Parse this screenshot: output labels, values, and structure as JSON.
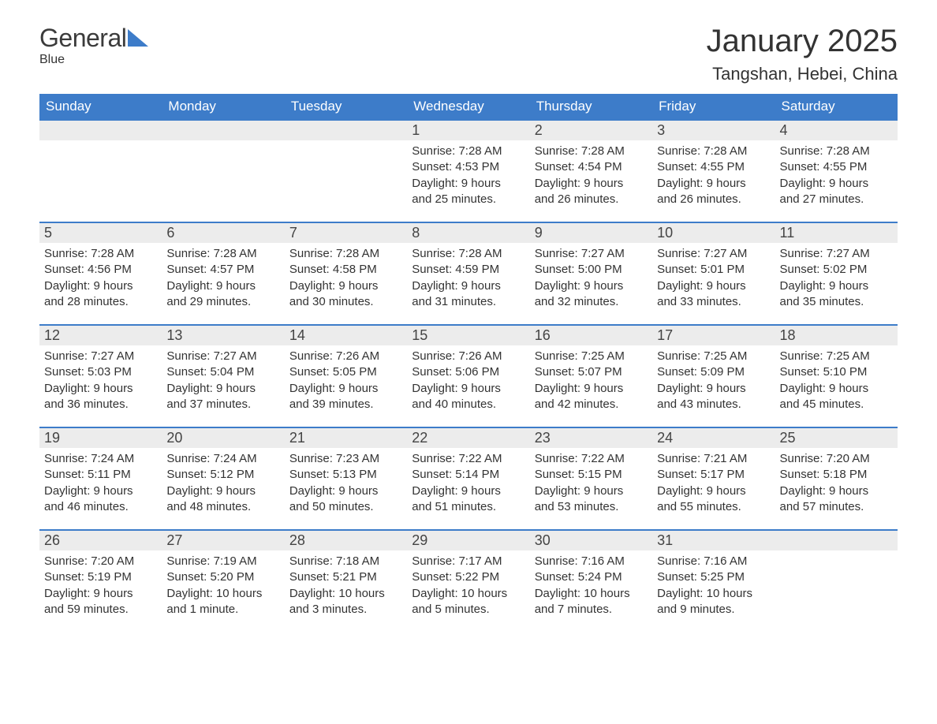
{
  "logo": {
    "text1": "General",
    "text2": "Blue"
  },
  "title": "January 2025",
  "location": "Tangshan, Hebei, China",
  "colors": {
    "header_bg": "#3d7cc9",
    "header_text": "#ffffff",
    "daynum_bg": "#ececec",
    "border": "#3d7cc9",
    "text": "#333333",
    "background": "#ffffff"
  },
  "day_headers": [
    "Sunday",
    "Monday",
    "Tuesday",
    "Wednesday",
    "Thursday",
    "Friday",
    "Saturday"
  ],
  "weeks": [
    [
      {
        "n": "",
        "sr": "",
        "ss": "",
        "dl1": "",
        "dl2": ""
      },
      {
        "n": "",
        "sr": "",
        "ss": "",
        "dl1": "",
        "dl2": ""
      },
      {
        "n": "",
        "sr": "",
        "ss": "",
        "dl1": "",
        "dl2": ""
      },
      {
        "n": "1",
        "sr": "Sunrise: 7:28 AM",
        "ss": "Sunset: 4:53 PM",
        "dl1": "Daylight: 9 hours",
        "dl2": "and 25 minutes."
      },
      {
        "n": "2",
        "sr": "Sunrise: 7:28 AM",
        "ss": "Sunset: 4:54 PM",
        "dl1": "Daylight: 9 hours",
        "dl2": "and 26 minutes."
      },
      {
        "n": "3",
        "sr": "Sunrise: 7:28 AM",
        "ss": "Sunset: 4:55 PM",
        "dl1": "Daylight: 9 hours",
        "dl2": "and 26 minutes."
      },
      {
        "n": "4",
        "sr": "Sunrise: 7:28 AM",
        "ss": "Sunset: 4:55 PM",
        "dl1": "Daylight: 9 hours",
        "dl2": "and 27 minutes."
      }
    ],
    [
      {
        "n": "5",
        "sr": "Sunrise: 7:28 AM",
        "ss": "Sunset: 4:56 PM",
        "dl1": "Daylight: 9 hours",
        "dl2": "and 28 minutes."
      },
      {
        "n": "6",
        "sr": "Sunrise: 7:28 AM",
        "ss": "Sunset: 4:57 PM",
        "dl1": "Daylight: 9 hours",
        "dl2": "and 29 minutes."
      },
      {
        "n": "7",
        "sr": "Sunrise: 7:28 AM",
        "ss": "Sunset: 4:58 PM",
        "dl1": "Daylight: 9 hours",
        "dl2": "and 30 minutes."
      },
      {
        "n": "8",
        "sr": "Sunrise: 7:28 AM",
        "ss": "Sunset: 4:59 PM",
        "dl1": "Daylight: 9 hours",
        "dl2": "and 31 minutes."
      },
      {
        "n": "9",
        "sr": "Sunrise: 7:27 AM",
        "ss": "Sunset: 5:00 PM",
        "dl1": "Daylight: 9 hours",
        "dl2": "and 32 minutes."
      },
      {
        "n": "10",
        "sr": "Sunrise: 7:27 AM",
        "ss": "Sunset: 5:01 PM",
        "dl1": "Daylight: 9 hours",
        "dl2": "and 33 minutes."
      },
      {
        "n": "11",
        "sr": "Sunrise: 7:27 AM",
        "ss": "Sunset: 5:02 PM",
        "dl1": "Daylight: 9 hours",
        "dl2": "and 35 minutes."
      }
    ],
    [
      {
        "n": "12",
        "sr": "Sunrise: 7:27 AM",
        "ss": "Sunset: 5:03 PM",
        "dl1": "Daylight: 9 hours",
        "dl2": "and 36 minutes."
      },
      {
        "n": "13",
        "sr": "Sunrise: 7:27 AM",
        "ss": "Sunset: 5:04 PM",
        "dl1": "Daylight: 9 hours",
        "dl2": "and 37 minutes."
      },
      {
        "n": "14",
        "sr": "Sunrise: 7:26 AM",
        "ss": "Sunset: 5:05 PM",
        "dl1": "Daylight: 9 hours",
        "dl2": "and 39 minutes."
      },
      {
        "n": "15",
        "sr": "Sunrise: 7:26 AM",
        "ss": "Sunset: 5:06 PM",
        "dl1": "Daylight: 9 hours",
        "dl2": "and 40 minutes."
      },
      {
        "n": "16",
        "sr": "Sunrise: 7:25 AM",
        "ss": "Sunset: 5:07 PM",
        "dl1": "Daylight: 9 hours",
        "dl2": "and 42 minutes."
      },
      {
        "n": "17",
        "sr": "Sunrise: 7:25 AM",
        "ss": "Sunset: 5:09 PM",
        "dl1": "Daylight: 9 hours",
        "dl2": "and 43 minutes."
      },
      {
        "n": "18",
        "sr": "Sunrise: 7:25 AM",
        "ss": "Sunset: 5:10 PM",
        "dl1": "Daylight: 9 hours",
        "dl2": "and 45 minutes."
      }
    ],
    [
      {
        "n": "19",
        "sr": "Sunrise: 7:24 AM",
        "ss": "Sunset: 5:11 PM",
        "dl1": "Daylight: 9 hours",
        "dl2": "and 46 minutes."
      },
      {
        "n": "20",
        "sr": "Sunrise: 7:24 AM",
        "ss": "Sunset: 5:12 PM",
        "dl1": "Daylight: 9 hours",
        "dl2": "and 48 minutes."
      },
      {
        "n": "21",
        "sr": "Sunrise: 7:23 AM",
        "ss": "Sunset: 5:13 PM",
        "dl1": "Daylight: 9 hours",
        "dl2": "and 50 minutes."
      },
      {
        "n": "22",
        "sr": "Sunrise: 7:22 AM",
        "ss": "Sunset: 5:14 PM",
        "dl1": "Daylight: 9 hours",
        "dl2": "and 51 minutes."
      },
      {
        "n": "23",
        "sr": "Sunrise: 7:22 AM",
        "ss": "Sunset: 5:15 PM",
        "dl1": "Daylight: 9 hours",
        "dl2": "and 53 minutes."
      },
      {
        "n": "24",
        "sr": "Sunrise: 7:21 AM",
        "ss": "Sunset: 5:17 PM",
        "dl1": "Daylight: 9 hours",
        "dl2": "and 55 minutes."
      },
      {
        "n": "25",
        "sr": "Sunrise: 7:20 AM",
        "ss": "Sunset: 5:18 PM",
        "dl1": "Daylight: 9 hours",
        "dl2": "and 57 minutes."
      }
    ],
    [
      {
        "n": "26",
        "sr": "Sunrise: 7:20 AM",
        "ss": "Sunset: 5:19 PM",
        "dl1": "Daylight: 9 hours",
        "dl2": "and 59 minutes."
      },
      {
        "n": "27",
        "sr": "Sunrise: 7:19 AM",
        "ss": "Sunset: 5:20 PM",
        "dl1": "Daylight: 10 hours",
        "dl2": "and 1 minute."
      },
      {
        "n": "28",
        "sr": "Sunrise: 7:18 AM",
        "ss": "Sunset: 5:21 PM",
        "dl1": "Daylight: 10 hours",
        "dl2": "and 3 minutes."
      },
      {
        "n": "29",
        "sr": "Sunrise: 7:17 AM",
        "ss": "Sunset: 5:22 PM",
        "dl1": "Daylight: 10 hours",
        "dl2": "and 5 minutes."
      },
      {
        "n": "30",
        "sr": "Sunrise: 7:16 AM",
        "ss": "Sunset: 5:24 PM",
        "dl1": "Daylight: 10 hours",
        "dl2": "and 7 minutes."
      },
      {
        "n": "31",
        "sr": "Sunrise: 7:16 AM",
        "ss": "Sunset: 5:25 PM",
        "dl1": "Daylight: 10 hours",
        "dl2": "and 9 minutes."
      },
      {
        "n": "",
        "sr": "",
        "ss": "",
        "dl1": "",
        "dl2": ""
      }
    ]
  ]
}
